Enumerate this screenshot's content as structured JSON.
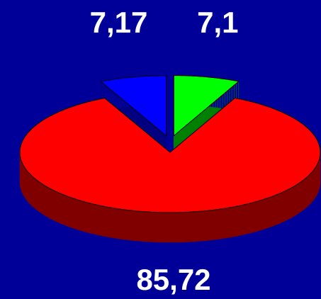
{
  "chart_data": {
    "type": "pie",
    "values": [
      7.1,
      85.72,
      7.17
    ],
    "value_labels": [
      "7,1",
      "85,72",
      "7,17"
    ],
    "colors": [
      "#00ff00",
      "#ff0000",
      "#0000ff"
    ]
  }
}
